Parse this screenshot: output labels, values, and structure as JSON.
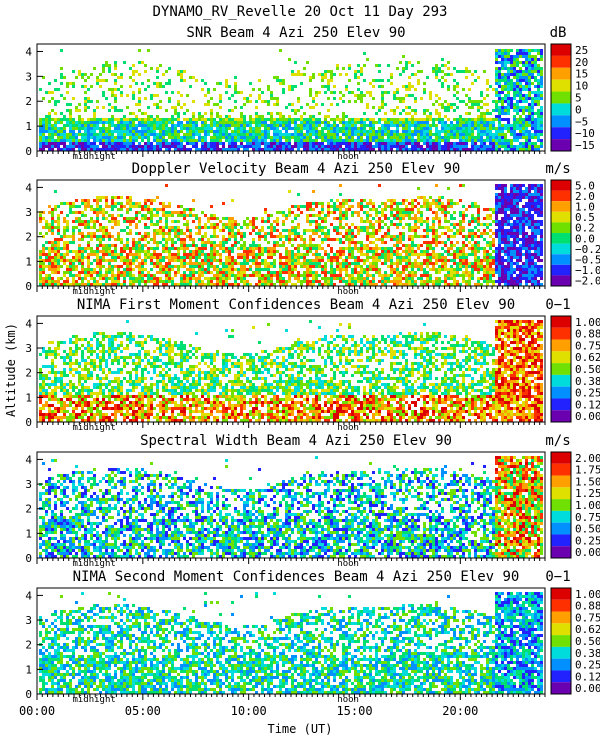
{
  "header": {
    "line1": "DYNAMO_RV_Revelle  20 Oct 11 Day 293"
  },
  "chart_data": {
    "type": "heatmap",
    "xlabel": "Time (UT)",
    "ylabel": "Altitude (km)",
    "xlim": [
      0,
      24
    ],
    "ylim": [
      0,
      4.3
    ],
    "x_ticks": [
      "00:00",
      "05:00",
      "10:00",
      "15:00",
      "20:00"
    ],
    "x_tick_values": [
      0,
      5,
      10,
      15,
      20
    ],
    "y_ticks": [
      "0",
      "1",
      "2",
      "3",
      "4"
    ],
    "markers": [
      {
        "label": "midnight",
        "x": 2.7
      },
      {
        "label": "noon",
        "x": 14.7
      }
    ],
    "panels": [
      {
        "title": "SNR Beam 4 Azi 250 Elev 90",
        "unit": "dB",
        "colorbar": [
          "25",
          "20",
          "15",
          "10",
          "5",
          "0",
          "−5",
          "−10",
          "−15"
        ]
      },
      {
        "title": "Doppler Velocity Beam 4 Azi 250 Elev 90",
        "unit": "m/s",
        "colorbar": [
          "5.0",
          "2.0",
          "1.0",
          "0.5",
          "0.2",
          "0.0",
          "−0.2",
          "−0.5",
          "−1.0",
          "−2.0"
        ]
      },
      {
        "title": "NIMA First Moment Confidences Beam 4 Azi 250 Elev 90",
        "unit": "0−1",
        "colorbar": [
          "1.00",
          "0.88",
          "0.75",
          "0.62",
          "0.50",
          "0.38",
          "0.25",
          "0.12",
          "0.00"
        ]
      },
      {
        "title": "Spectral Width Beam 4 Azi 250 Elev 90",
        "unit": "m/s",
        "colorbar": [
          "2.00",
          "1.75",
          "1.50",
          "1.25",
          "1.00",
          "0.75",
          "0.50",
          "0.25",
          "0.00"
        ]
      },
      {
        "title": "NIMA Second Moment Confidences Beam 4 Azi 250 Elev 90",
        "unit": "0−1",
        "colorbar": [
          "1.00",
          "0.88",
          "0.75",
          "0.62",
          "0.50",
          "0.38",
          "0.25",
          "0.12",
          "0.00"
        ]
      }
    ],
    "palette": [
      "#6a00b0",
      "#2222ff",
      "#0090ff",
      "#00dcdc",
      "#00e070",
      "#70e000",
      "#e0e000",
      "#ffa000",
      "#ff3000",
      "#dd0000"
    ]
  }
}
